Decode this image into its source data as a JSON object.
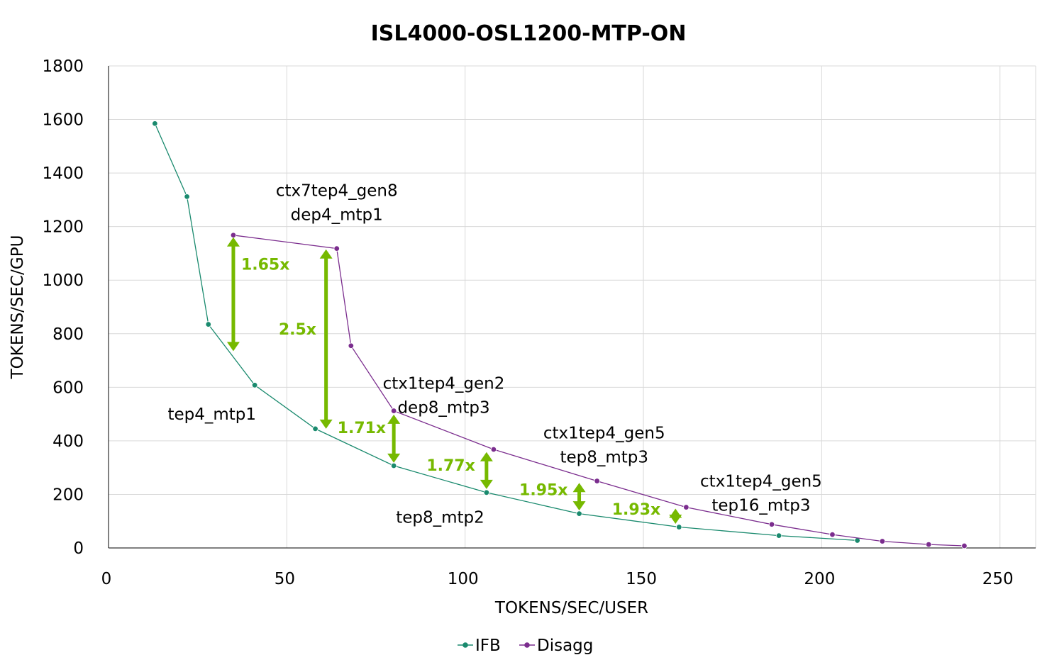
{
  "chart_data": {
    "type": "line",
    "title": "ISL4000-OSL1200-MTP-ON",
    "xlabel": "TOKENS/SEC/USER",
    "ylabel": "TOKENS/SEC/GPU",
    "xlim": [
      0,
      260
    ],
    "ylim": [
      0,
      1800
    ],
    "xticks": [
      0,
      50,
      100,
      150,
      200,
      250
    ],
    "yticks": [
      0,
      200,
      400,
      600,
      800,
      1000,
      1200,
      1400,
      1600,
      1800
    ],
    "grid": true,
    "legend_position": "bottom",
    "series": [
      {
        "name": "IFB",
        "color": "#1a8a6e",
        "points": [
          [
            13,
            1585
          ],
          [
            22,
            1312
          ],
          [
            28,
            835
          ],
          [
            41,
            608
          ],
          [
            58,
            445
          ],
          [
            80,
            307
          ],
          [
            106,
            207
          ],
          [
            132,
            128
          ],
          [
            160,
            78
          ],
          [
            188,
            46
          ],
          [
            210,
            28
          ]
        ]
      },
      {
        "name": "Disagg",
        "color": "#7b2d8e",
        "points": [
          [
            35,
            1168
          ],
          [
            64,
            1118
          ],
          [
            68,
            755
          ],
          [
            80,
            512
          ],
          [
            108,
            368
          ],
          [
            137,
            250
          ],
          [
            162,
            152
          ],
          [
            186,
            88
          ],
          [
            203,
            50
          ],
          [
            217,
            25
          ],
          [
            230,
            13
          ],
          [
            240,
            8
          ]
        ]
      }
    ],
    "annotations": [
      {
        "lines": [
          "ctx7tep4_gen8",
          "dep4_mtp1"
        ],
        "x": 64,
        "y": 1335
      },
      {
        "lines": [
          "tep4_mtp1"
        ],
        "x": 29,
        "y": 500
      },
      {
        "lines": [
          "ctx1tep4_gen2",
          "dep8_mtp3"
        ],
        "x": 94,
        "y": 615
      },
      {
        "lines": [
          "ctx1tep4_gen5",
          "tep8_mtp3"
        ],
        "x": 139,
        "y": 430
      },
      {
        "lines": [
          "ctx1tep4_gen5",
          "tep16_mtp3"
        ],
        "x": 183,
        "y": 250
      },
      {
        "lines": [
          "tep8_mtp2"
        ],
        "x": 93,
        "y": 115
      }
    ],
    "ratio_arrows": [
      {
        "label": "1.65x",
        "x": 35,
        "y_low": 735,
        "y_high": 1160,
        "label_x": 44,
        "label_y": 1060
      },
      {
        "label": "2.5x",
        "x": 61,
        "y_low": 445,
        "y_high": 1115,
        "label_x": 53,
        "label_y": 818
      },
      {
        "label": "1.71x",
        "x": 80,
        "y_low": 318,
        "y_high": 498,
        "label_x": 71,
        "label_y": 450
      },
      {
        "label": "1.77x",
        "x": 106,
        "y_low": 220,
        "y_high": 358,
        "label_x": 96,
        "label_y": 310
      },
      {
        "label": "1.95x",
        "x": 132,
        "y_low": 140,
        "y_high": 243,
        "label_x": 122,
        "label_y": 218
      },
      {
        "label": "1.93x",
        "x": 159,
        "y_low": 90,
        "y_high": 147,
        "label_x": 148,
        "label_y": 145
      }
    ]
  }
}
